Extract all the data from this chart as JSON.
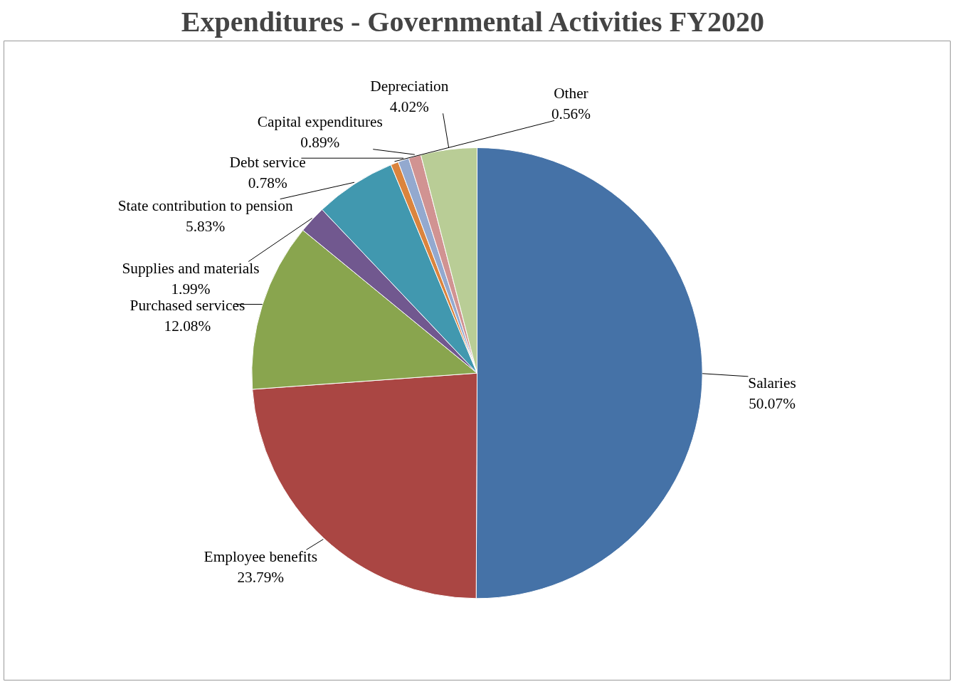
{
  "chart_data": {
    "type": "pie",
    "title": "Expenditures  - Governmental Activities FY2020",
    "categories": [
      "Salaries",
      "Employee benefits",
      "Purchased services",
      "Supplies and materials",
      "State contribution to pension",
      "Other",
      "Debt service",
      "Capital expenditures",
      "Depreciation"
    ],
    "values": [
      50.07,
      23.79,
      12.08,
      1.99,
      5.83,
      0.56,
      0.78,
      0.89,
      4.02
    ],
    "value_labels": [
      "50.07%",
      "23.79%",
      "12.08%",
      "1.99%",
      "5.83%",
      "0.56%",
      "0.78%",
      "0.89%",
      "4.02%"
    ],
    "colors": [
      "#4572a7",
      "#aa4643",
      "#89a54e",
      "#71588f",
      "#4198af",
      "#db843d",
      "#93a9cf",
      "#d19392",
      "#b9cd96"
    ]
  }
}
